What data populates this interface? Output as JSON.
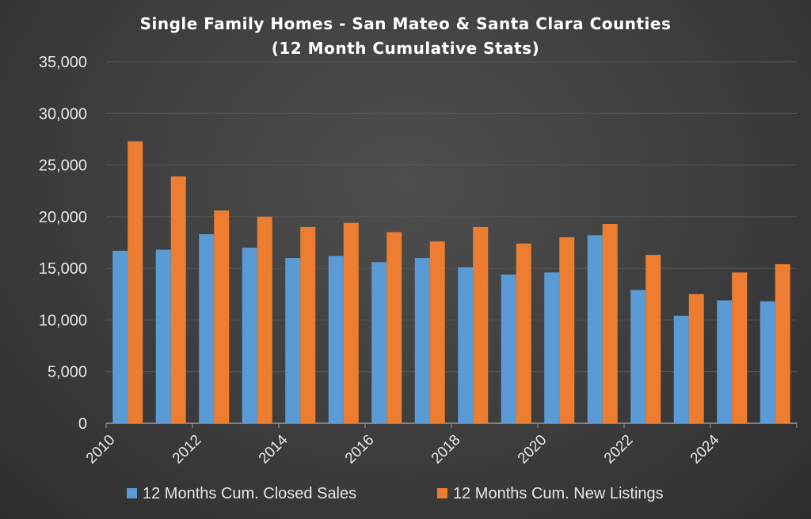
{
  "chart_data": {
    "type": "bar",
    "title": "Single Family Homes - San Mateo & Santa Clara  Counties",
    "subtitle": "(12 Month Cumulative Stats)",
    "categories": [
      "2010",
      "2011",
      "2012",
      "2013",
      "2014",
      "2015",
      "2016",
      "2017",
      "2018",
      "2019",
      "2020",
      "2021",
      "2022",
      "2023",
      "2024",
      "2025"
    ],
    "x_tick_labels": [
      "2010",
      "2012",
      "2014",
      "2016",
      "2018",
      "2020",
      "2022",
      "2024"
    ],
    "series": [
      {
        "name": "12 Months Cum. Closed Sales",
        "color": "#5b9bd5",
        "values": [
          16700,
          16800,
          18300,
          17000,
          16000,
          16200,
          15600,
          16000,
          15100,
          14400,
          14600,
          18200,
          12900,
          10400,
          11900,
          11800
        ]
      },
      {
        "name": "12 Months Cum. New Listings",
        "color": "#ed7d31",
        "values": [
          27300,
          23900,
          20600,
          20000,
          19000,
          19400,
          18500,
          17600,
          19000,
          17400,
          18000,
          19300,
          16300,
          12500,
          14600,
          15400
        ]
      }
    ],
    "ylim": [
      0,
      35000
    ],
    "y_ticks": [
      "0",
      "5,000",
      "10,000",
      "15,000",
      "20,000",
      "25,000",
      "30,000",
      "35,000"
    ],
    "grid": true,
    "legend_position": "bottom"
  }
}
